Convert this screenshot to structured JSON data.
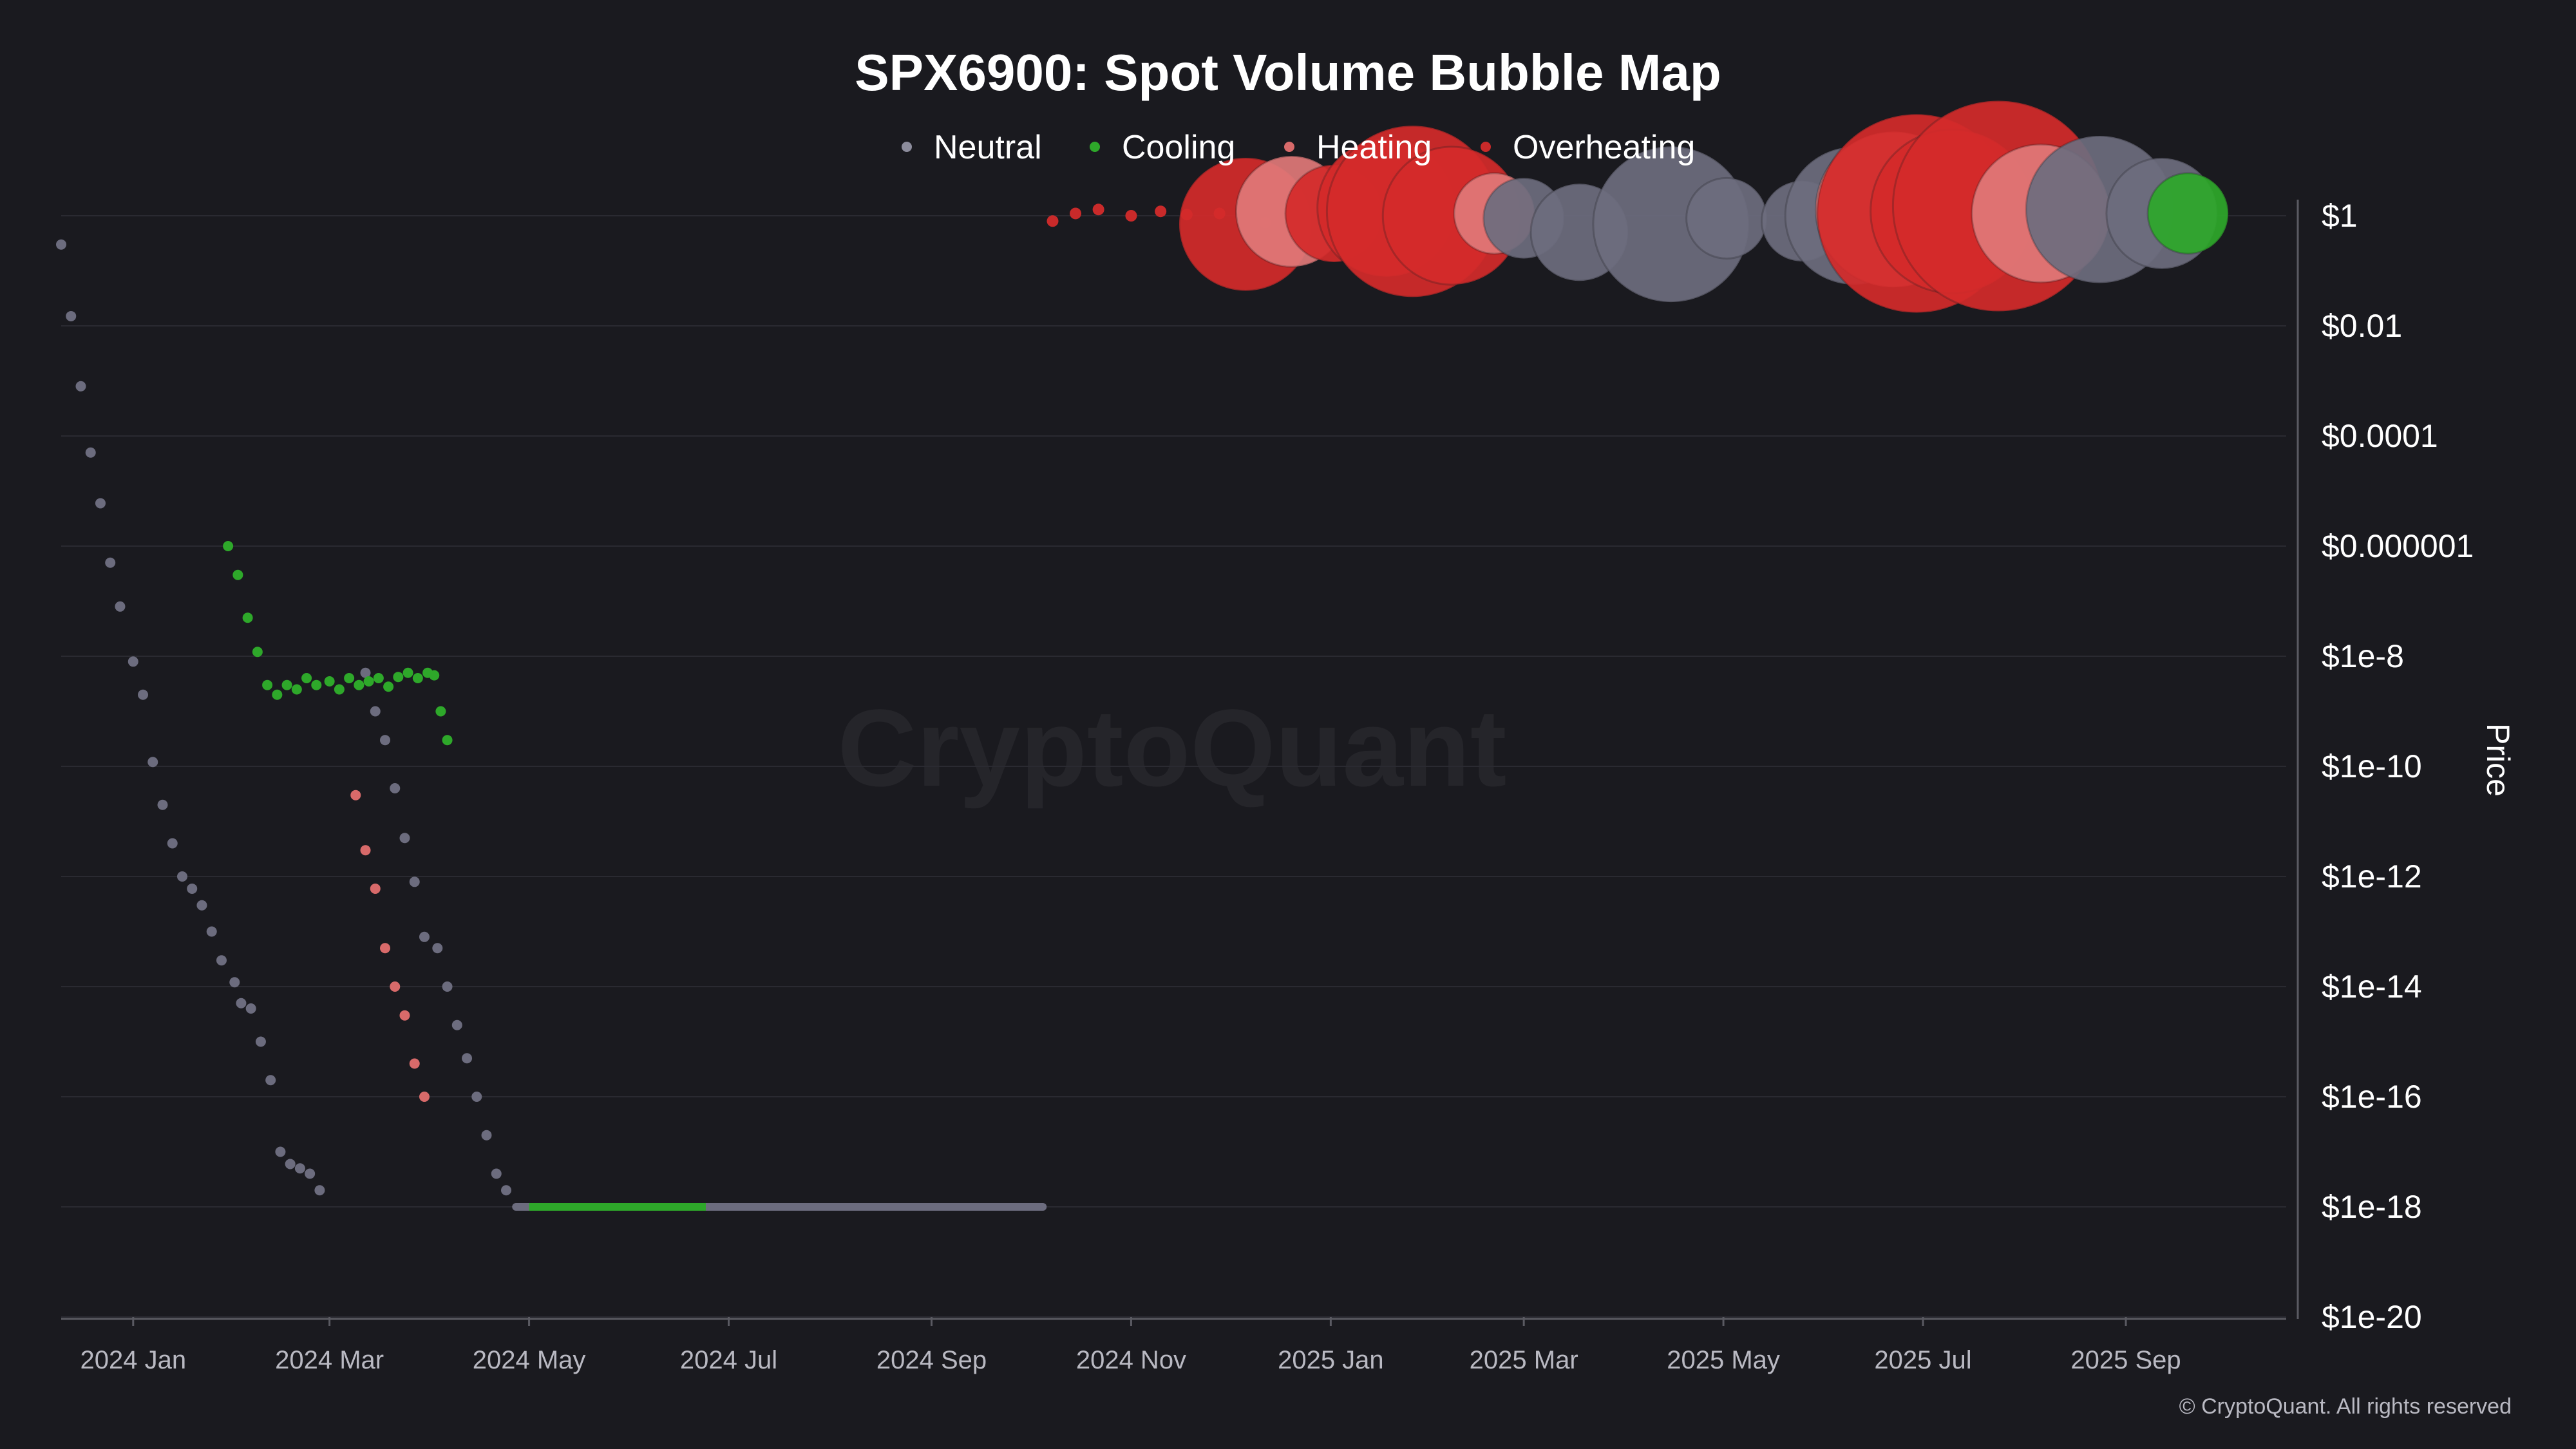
{
  "chart_data": {
    "type": "scatter",
    "title": "SPX6900: Spot Volume Bubble Map",
    "ylabel": "Price",
    "y_scale": "log",
    "ylim": [
      1e-20,
      1
    ],
    "xlim": [
      "2023-12-10",
      "2025-10-20"
    ],
    "grid": true,
    "legend_position": "top-center",
    "watermark": "CryptoQuant",
    "copyright": "© CryptoQuant. All rights reserved",
    "colors": {
      "background": "#1a1a1f",
      "Neutral": "#6c6c7e",
      "Cooling": "#2ea82a",
      "Heating": "#d86a6a",
      "Overheating": "#c92a2a",
      "grid": "#2a2a31",
      "axis": "#5a5a62"
    },
    "legend": [
      {
        "name": "Neutral",
        "color": "#8c8c9c"
      },
      {
        "name": "Cooling",
        "color": "#2ea82a"
      },
      {
        "name": "Heating",
        "color": "#d86a6a"
      },
      {
        "name": "Overheating",
        "color": "#c92a2a"
      }
    ],
    "y_ticks": [
      {
        "value": 1,
        "label": "$1"
      },
      {
        "value": 0.01,
        "label": "$0.01"
      },
      {
        "value": 0.0001,
        "label": "$0.0001"
      },
      {
        "value": 1e-06,
        "label": "$0.000001"
      },
      {
        "value": 1e-08,
        "label": "$1e-8"
      },
      {
        "value": 1e-10,
        "label": "$1e-10"
      },
      {
        "value": 1e-12,
        "label": "$1e-12"
      },
      {
        "value": 1e-14,
        "label": "$1e-14"
      },
      {
        "value": 1e-16,
        "label": "$1e-16"
      },
      {
        "value": 1e-18,
        "label": "$1e-18"
      },
      {
        "value": 1e-20,
        "label": "$1e-20"
      }
    ],
    "x_ticks": [
      {
        "date": "2024-01-01",
        "label": "2024 Jan"
      },
      {
        "date": "2024-03-01",
        "label": "2024 Mar"
      },
      {
        "date": "2024-05-01",
        "label": "2024 May"
      },
      {
        "date": "2024-07-01",
        "label": "2024 Jul"
      },
      {
        "date": "2024-09-01",
        "label": "2024 Sep"
      },
      {
        "date": "2024-11-01",
        "label": "2024 Nov"
      },
      {
        "date": "2025-01-01",
        "label": "2025 Jan"
      },
      {
        "date": "2025-03-01",
        "label": "2025 Mar"
      },
      {
        "date": "2025-05-01",
        "label": "2025 May"
      },
      {
        "date": "2025-07-01",
        "label": "2025 Jul"
      },
      {
        "date": "2025-09-01",
        "label": "2025 Sep"
      }
    ],
    "series": [
      {
        "name": "Neutral",
        "points": [
          [
            "2023-12-10",
            0.3
          ],
          [
            "2023-12-13",
            0.015
          ],
          [
            "2023-12-16",
            0.0008
          ],
          [
            "2023-12-19",
            5e-05
          ],
          [
            "2023-12-22",
            6e-06
          ],
          [
            "2023-12-25",
            5e-07
          ],
          [
            "2023-12-28",
            8e-08
          ],
          [
            "2024-01-01",
            8e-09
          ],
          [
            "2024-01-04",
            2e-09
          ],
          [
            "2024-01-07",
            1.2e-10
          ],
          [
            "2024-01-10",
            2e-11
          ],
          [
            "2024-01-13",
            4e-12
          ],
          [
            "2024-01-16",
            1e-12
          ],
          [
            "2024-01-19",
            6e-13
          ],
          [
            "2024-01-22",
            3e-13
          ],
          [
            "2024-01-25",
            1e-13
          ],
          [
            "2024-01-28",
            3e-14
          ],
          [
            "2024-02-01",
            1.2e-14
          ],
          [
            "2024-02-03",
            5e-15
          ],
          [
            "2024-02-06",
            4e-15
          ],
          [
            "2024-02-09",
            1e-15
          ],
          [
            "2024-02-12",
            2e-16
          ],
          [
            "2024-02-15",
            1e-17
          ],
          [
            "2024-02-18",
            6e-18
          ],
          [
            "2024-02-21",
            5e-18
          ],
          [
            "2024-02-24",
            4e-18
          ],
          [
            "2024-02-27",
            2e-18
          ],
          [
            "2024-03-12",
            5e-09
          ],
          [
            "2024-03-15",
            1e-09
          ],
          [
            "2024-03-18",
            3e-10
          ],
          [
            "2024-03-21",
            4e-11
          ],
          [
            "2024-03-24",
            5e-12
          ],
          [
            "2024-03-27",
            8e-13
          ],
          [
            "2024-03-30",
            8e-14
          ],
          [
            "2024-04-03",
            5e-14
          ],
          [
            "2024-04-06",
            1e-14
          ],
          [
            "2024-04-09",
            2e-15
          ],
          [
            "2024-04-12",
            5e-16
          ],
          [
            "2024-04-15",
            1e-16
          ],
          [
            "2024-04-18",
            2e-17
          ],
          [
            "2024-04-21",
            4e-18
          ],
          [
            "2024-04-24",
            2e-18
          ]
        ]
      },
      {
        "name": "Cooling",
        "points": [
          [
            "2024-01-30",
            1e-06
          ],
          [
            "2024-02-02",
            3e-07
          ],
          [
            "2024-02-05",
            5e-08
          ],
          [
            "2024-02-08",
            1.2e-08
          ],
          [
            "2024-02-11",
            3e-09
          ],
          [
            "2024-02-14",
            2e-09
          ],
          [
            "2024-02-17",
            3e-09
          ],
          [
            "2024-02-20",
            2.5e-09
          ],
          [
            "2024-02-23",
            4e-09
          ],
          [
            "2024-02-26",
            3e-09
          ],
          [
            "2024-03-01",
            3.5e-09
          ],
          [
            "2024-03-04",
            2.5e-09
          ],
          [
            "2024-03-07",
            4e-09
          ],
          [
            "2024-03-10",
            3e-09
          ],
          [
            "2024-03-13",
            3.5e-09
          ],
          [
            "2024-03-16",
            4e-09
          ],
          [
            "2024-03-19",
            2.8e-09
          ],
          [
            "2024-03-22",
            4.2e-09
          ],
          [
            "2024-03-25",
            5e-09
          ],
          [
            "2024-03-28",
            4e-09
          ],
          [
            "2024-03-31",
            5e-09
          ],
          [
            "2024-04-02",
            4.5e-09
          ],
          [
            "2024-04-04",
            1e-09
          ],
          [
            "2024-04-06",
            3e-10
          ],
          [
            "2024-05-01",
            1e-18
          ],
          [
            "2024-05-10",
            1e-18
          ],
          [
            "2024-05-20",
            1e-18
          ],
          [
            "2024-05-30",
            1e-18
          ],
          [
            "2024-06-10",
            1e-18
          ],
          [
            "2024-06-24",
            1e-18
          ],
          [
            "2025-09-20",
            1.1
          ]
        ]
      },
      {
        "name": "Heating",
        "points": [
          [
            "2024-03-09",
            3e-11
          ],
          [
            "2024-03-12",
            3e-12
          ],
          [
            "2024-03-15",
            6e-13
          ],
          [
            "2024-03-18",
            5e-14
          ],
          [
            "2024-03-21",
            1e-14
          ],
          [
            "2024-03-24",
            3e-15
          ],
          [
            "2024-03-27",
            4e-16
          ],
          [
            "2024-03-30",
            1e-16
          ],
          [
            "2024-12-20",
            1.2
          ],
          [
            "2025-01-20",
            1.5
          ],
          [
            "2025-02-15",
            0.9
          ],
          [
            "2025-07-15",
            1.3
          ],
          [
            "2025-08-05",
            1.1
          ]
        ]
      },
      {
        "name": "Overheating",
        "points": [
          [
            "2024-10-08",
            0.8
          ],
          [
            "2024-10-15",
            1.1
          ],
          [
            "2024-10-22",
            1.3
          ],
          [
            "2024-11-01",
            1.0
          ],
          [
            "2024-11-10",
            1.2
          ],
          [
            "2024-11-18",
            1.05
          ],
          [
            "2024-11-28",
            1.1
          ],
          [
            "2024-12-12",
            0.75
          ],
          [
            "2025-01-28",
            1.2
          ],
          [
            "2025-02-05",
            1.6
          ],
          [
            "2025-02-18",
            1.25
          ],
          [
            "2025-06-20",
            1.0
          ],
          [
            "2025-07-10",
            1.2
          ],
          [
            "2025-07-25",
            1.4
          ],
          [
            "2025-08-10",
            1.1
          ]
        ]
      }
    ],
    "bubbles": [
      {
        "date": "2024-12-06",
        "price": 0.7,
        "volume": 55,
        "category": "Overheating"
      },
      {
        "date": "2024-12-20",
        "price": 1.2,
        "volume": 35,
        "category": "Heating"
      },
      {
        "date": "2025-01-02",
        "price": 1.1,
        "volume": 25,
        "category": "Overheating"
      },
      {
        "date": "2025-01-18",
        "price": 1.4,
        "volume": 60,
        "category": "Overheating"
      },
      {
        "date": "2025-01-26",
        "price": 1.2,
        "volume": 100,
        "category": "Overheating"
      },
      {
        "date": "2025-02-07",
        "price": 1.0,
        "volume": 60,
        "category": "Overheating"
      },
      {
        "date": "2025-02-20",
        "price": 1.1,
        "volume": 15,
        "category": "Heating"
      },
      {
        "date": "2025-03-01",
        "price": 0.9,
        "volume": 15,
        "category": "Neutral"
      },
      {
        "date": "2025-03-18",
        "price": 0.5,
        "volume": 25,
        "category": "Neutral"
      },
      {
        "date": "2025-04-15",
        "price": 0.7,
        "volume": 80,
        "category": "Neutral"
      },
      {
        "date": "2025-05-02",
        "price": 0.9,
        "volume": 15,
        "category": "Neutral"
      },
      {
        "date": "2025-05-25",
        "price": 0.8,
        "volume": 15,
        "category": "Neutral"
      },
      {
        "date": "2025-06-10",
        "price": 1.0,
        "volume": 60,
        "category": "Neutral"
      },
      {
        "date": "2025-06-22",
        "price": 1.3,
        "volume": 80,
        "category": "Heating"
      },
      {
        "date": "2025-06-29",
        "price": 1.1,
        "volume": 140,
        "category": "Overheating"
      },
      {
        "date": "2025-07-10",
        "price": 1.2,
        "volume": 90,
        "category": "Overheating"
      },
      {
        "date": "2025-07-24",
        "price": 1.5,
        "volume": 160,
        "category": "Overheating"
      },
      {
        "date": "2025-08-06",
        "price": 1.1,
        "volume": 60,
        "category": "Heating"
      },
      {
        "date": "2025-08-24",
        "price": 1.3,
        "volume": 70,
        "category": "Neutral"
      },
      {
        "date": "2025-09-12",
        "price": 1.1,
        "volume": 35,
        "category": "Neutral"
      },
      {
        "date": "2025-09-20",
        "price": 1.1,
        "volume": 15,
        "category": "Cooling"
      }
    ]
  }
}
